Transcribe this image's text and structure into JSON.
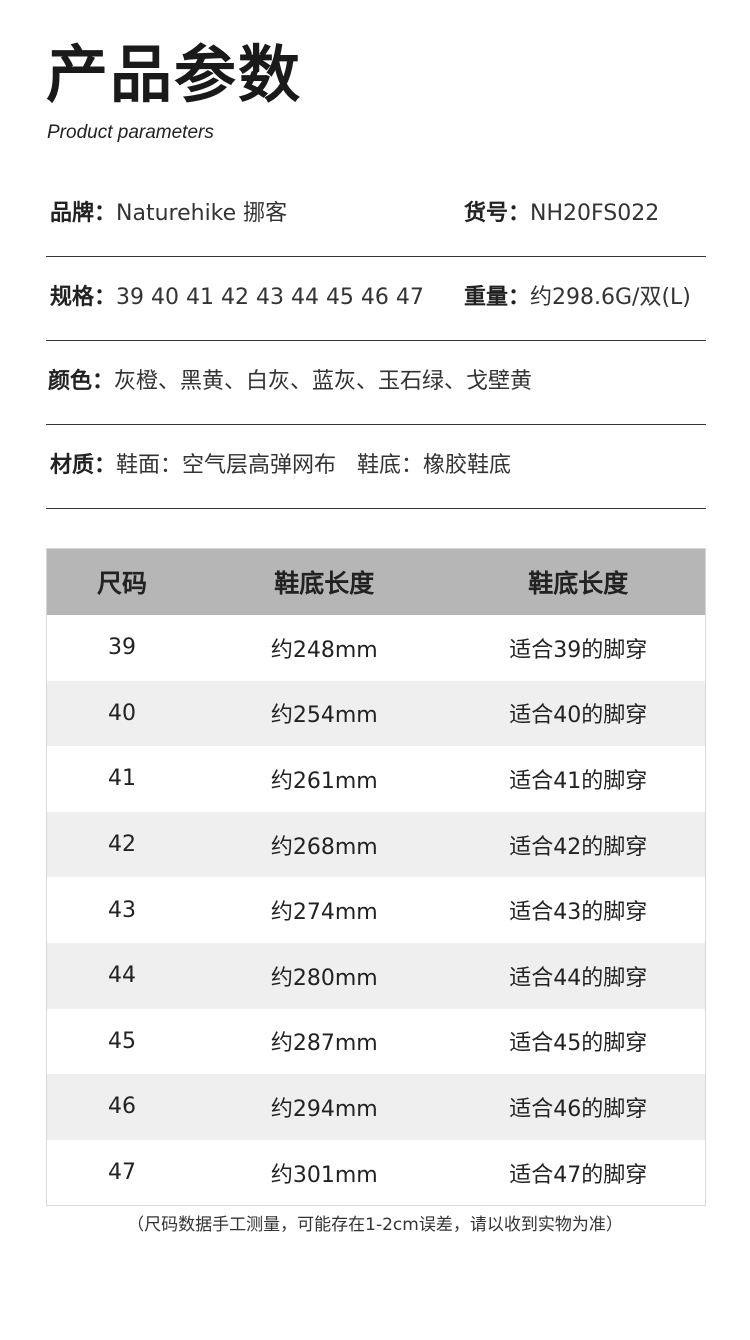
{
  "header": {
    "title": "产品参数",
    "subtitle": "Product parameters"
  },
  "params": [
    {
      "label": "品牌：",
      "value": "Naturehike 挪客",
      "label2": "货号：",
      "value2": "NH20FS022"
    },
    {
      "label": "规格：",
      "value": "39 40 41 42 43 44 45 46 47",
      "label2": "重量：",
      "value2": "约298.6G/双(L)"
    },
    {
      "label": "颜色：",
      "value": "灰橙、黑黄、白灰、蓝灰、玉石绿、戈壁黄"
    },
    {
      "label": "材质：",
      "value": "鞋面：空气层高弹网布   鞋底：橡胶鞋底"
    }
  ],
  "size_table": {
    "headers": [
      "尺码",
      "鞋底长度",
      "鞋底长度"
    ],
    "rows": [
      [
        "39",
        "约248mm",
        "适合39的脚穿"
      ],
      [
        "40",
        "约254mm",
        "适合40的脚穿"
      ],
      [
        "41",
        "约261mm",
        "适合41的脚穿"
      ],
      [
        "42",
        "约268mm",
        "适合42的脚穿"
      ],
      [
        "43",
        "约274mm",
        "适合43的脚穿"
      ],
      [
        "44",
        "约280mm",
        "适合44的脚穿"
      ],
      [
        "45",
        "约287mm",
        "适合45的脚穿"
      ],
      [
        "46",
        "约294mm",
        "适合46的脚穿"
      ],
      [
        "47",
        "约301mm",
        "适合47的脚穿"
      ]
    ]
  },
  "note": "（尺码数据手工测量，可能存在1-2cm误差，请以收到实物为准）"
}
